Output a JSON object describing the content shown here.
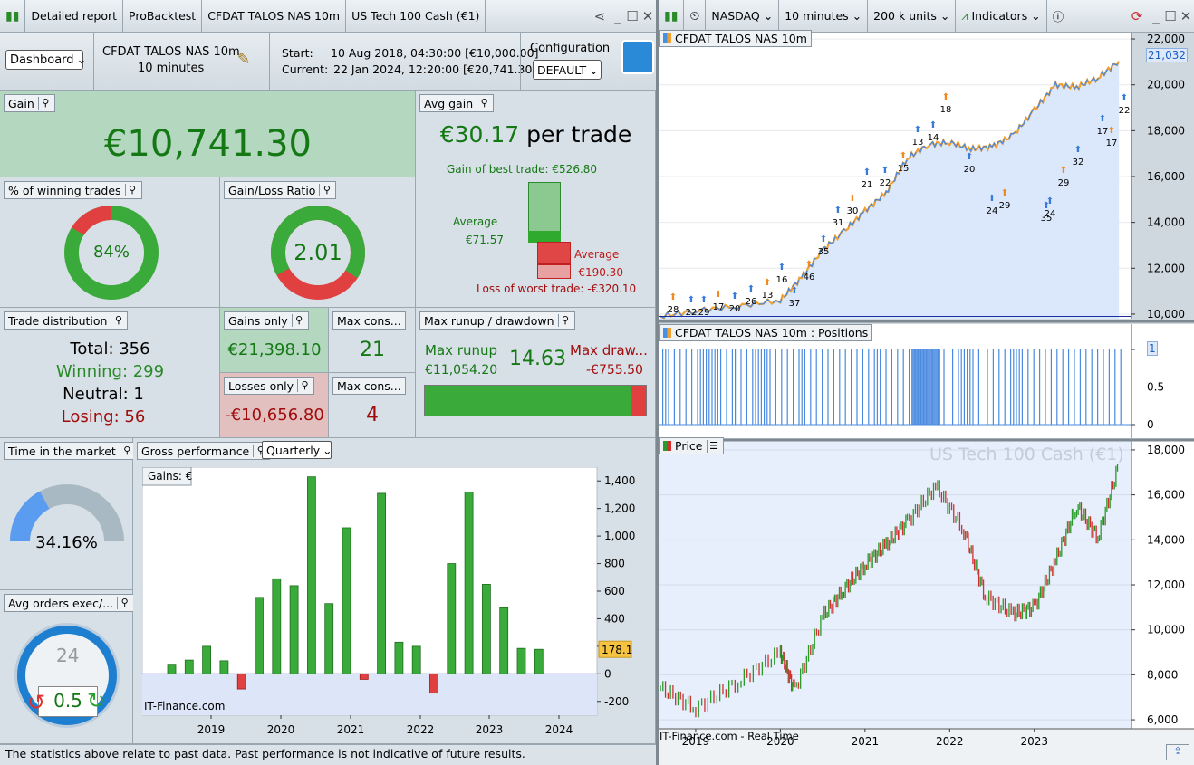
{
  "left_toolbar": {
    "tabs": [
      "Detailed report",
      "ProBacktest",
      "CFDAT TALOS NAS 10m",
      "US Tech 100 Cash (€1)"
    ]
  },
  "header": {
    "view_select": "Dashboard",
    "system_name": "CFDAT TALOS NAS 10m",
    "timeframe": "10 minutes",
    "start_label": "Start:",
    "start_value": "10 Aug 2018, 04:30:00 [€10,000.00]",
    "current_label": "Current:",
    "current_value": "22 Jan 2024, 12:20:00 [€20,741.30]",
    "config_label": "Configuration",
    "config_value": "DEFAULT"
  },
  "gain": {
    "title": "Gain",
    "value": "€10,741.30"
  },
  "avg_gain": {
    "title": "Avg gain",
    "value": "€30.17",
    "suffix": "per trade",
    "best": "Gain of best trade: €526.80",
    "avg_win_label": "Average",
    "avg_win_value": "€71.57",
    "avg_loss_label": "Average",
    "avg_loss_value": "-€190.30",
    "worst": "Loss of worst trade: -€320.10",
    "best_value": 526.8,
    "avg_win": 71.57,
    "avg_loss": 190.3,
    "worst_value": 320.1
  },
  "winning_trades": {
    "title": "% of winning trades",
    "value": "84%",
    "fraction": 0.84
  },
  "gain_loss_ratio": {
    "title": "Gain/Loss Ratio",
    "value": "2.01",
    "fraction": 0.67
  },
  "distribution": {
    "title": "Trade distribution",
    "total": "Total: 356",
    "winning": "Winning: 299",
    "neutral": "Neutral: 1",
    "losing": "Losing: 56"
  },
  "gains_only": {
    "title": "Gains only",
    "value": "€21,398.10"
  },
  "losses_only": {
    "title": "Losses only",
    "value": "-€10,656.80"
  },
  "max_cons_win": {
    "title": "Max cons...",
    "value": "21"
  },
  "max_cons_loss": {
    "title": "Max cons...",
    "value": "4"
  },
  "runup": {
    "title": "Max runup / drawdown",
    "runup_label": "Max runup",
    "runup_value": "€11,054.20",
    "ratio": "14.63",
    "dd_label": "Max draw...",
    "dd_value": "-€755.50",
    "runup_fraction": 0.936
  },
  "time_market": {
    "title": "Time in the market",
    "value": "34.16%",
    "fraction": 0.3416
  },
  "avg_orders": {
    "title": "Avg orders exec/...",
    "clock_label": "24",
    "value": "0.5"
  },
  "gross": {
    "title": "Gross performance",
    "period": "Quarterly",
    "chart_title": "Gains: €",
    "watermark": "IT-Finance.com",
    "last_value": "178.1"
  },
  "disclaimer": "The statistics above relate to past data. Past performance is not indicative of future results.",
  "right_toolbar": {
    "market": "NASDAQ",
    "interval": "10 minutes",
    "units": "200 k units",
    "indicators": "Indicators"
  },
  "equity": {
    "title": "CFDAT TALOS NAS 10m",
    "last_label": "21,032",
    "ticks": [
      "22,000",
      "20,000",
      "18,000",
      "16,000",
      "14,000",
      "12,000",
      "10,000"
    ]
  },
  "positions": {
    "title": "CFDAT TALOS NAS 10m : Positions",
    "last_label": "1",
    "ticks": [
      "1",
      "0.5",
      "0"
    ]
  },
  "price": {
    "title": "Price",
    "instrument": "US Tech 100 Cash (€1)",
    "watermark": "IT-Finance.com - Real Time",
    "ticks": [
      "18,000",
      "16,000",
      "14,000",
      "12,000",
      "10,000",
      "8,000",
      "6,000"
    ],
    "markers": [
      "28",
      "22",
      "29",
      "17",
      "20",
      "26",
      "13",
      "16",
      "37",
      "46",
      "35",
      "31",
      "30",
      "21",
      "22",
      "15",
      "13",
      "14",
      "18",
      "20",
      "24",
      "29",
      "35",
      "24",
      "29",
      "32",
      "17",
      "17",
      "22"
    ]
  },
  "x_years": [
    "2019",
    "2020",
    "2021",
    "2022",
    "2023"
  ],
  "chart_data": [
    {
      "type": "bar",
      "title": "Gains: €",
      "categories": [
        "2018Q4",
        "2019Q1",
        "2019Q2",
        "2019Q3",
        "2019Q4",
        "2020Q1",
        "2020Q2",
        "2020Q3",
        "2020Q4",
        "2021Q1",
        "2021Q2",
        "2021Q3",
        "2021Q4",
        "2022Q1",
        "2022Q2",
        "2022Q3",
        "2022Q4",
        "2023Q1",
        "2023Q2",
        "2023Q3",
        "2023Q4",
        "2024Q1"
      ],
      "values": [
        70,
        100,
        200,
        95,
        -110,
        555,
        690,
        640,
        1430,
        510,
        1060,
        -40,
        1310,
        230,
        200,
        -140,
        800,
        1320,
        650,
        480,
        185,
        178.1
      ],
      "ylim": [
        -300,
        1500
      ],
      "xticks": [
        "2019",
        "2020",
        "2021",
        "2022",
        "2023",
        "2024"
      ],
      "yticks": [
        1400,
        1200,
        1000,
        800,
        600,
        400,
        200,
        0,
        -200
      ]
    },
    {
      "type": "line",
      "title": "CFDAT TALOS NAS 10m",
      "x": [
        "2018-08",
        "2019-01",
        "2019-07",
        "2020-01",
        "2020-04",
        "2020-07",
        "2020-10",
        "2021-01",
        "2021-04",
        "2021-07",
        "2021-10",
        "2022-01",
        "2022-04",
        "2022-07",
        "2022-10",
        "2023-01",
        "2023-04",
        "2023-07",
        "2023-10",
        "2024-01"
      ],
      "y": [
        9900,
        10150,
        10350,
        10600,
        11600,
        12800,
        13600,
        14500,
        15300,
        16800,
        17400,
        17500,
        17200,
        17300,
        17800,
        18900,
        20000,
        19900,
        20300,
        21032
      ],
      "ylim": [
        9800,
        22200
      ]
    },
    {
      "type": "line",
      "title": "Price",
      "x": [
        "2018-08",
        "2019-01",
        "2019-07",
        "2020-01",
        "2020-03",
        "2020-07",
        "2020-10",
        "2021-01",
        "2021-04",
        "2021-07",
        "2021-11",
        "2022-03",
        "2022-06",
        "2022-10",
        "2023-01",
        "2023-04",
        "2023-07",
        "2023-10",
        "2024-01"
      ],
      "y": [
        7400,
        6500,
        7700,
        9000,
        7300,
        10600,
        11800,
        12900,
        13800,
        14800,
        16400,
        14400,
        11500,
        10700,
        11000,
        13100,
        15500,
        14100,
        17400
      ],
      "ylim": [
        5600,
        18400
      ]
    }
  ]
}
